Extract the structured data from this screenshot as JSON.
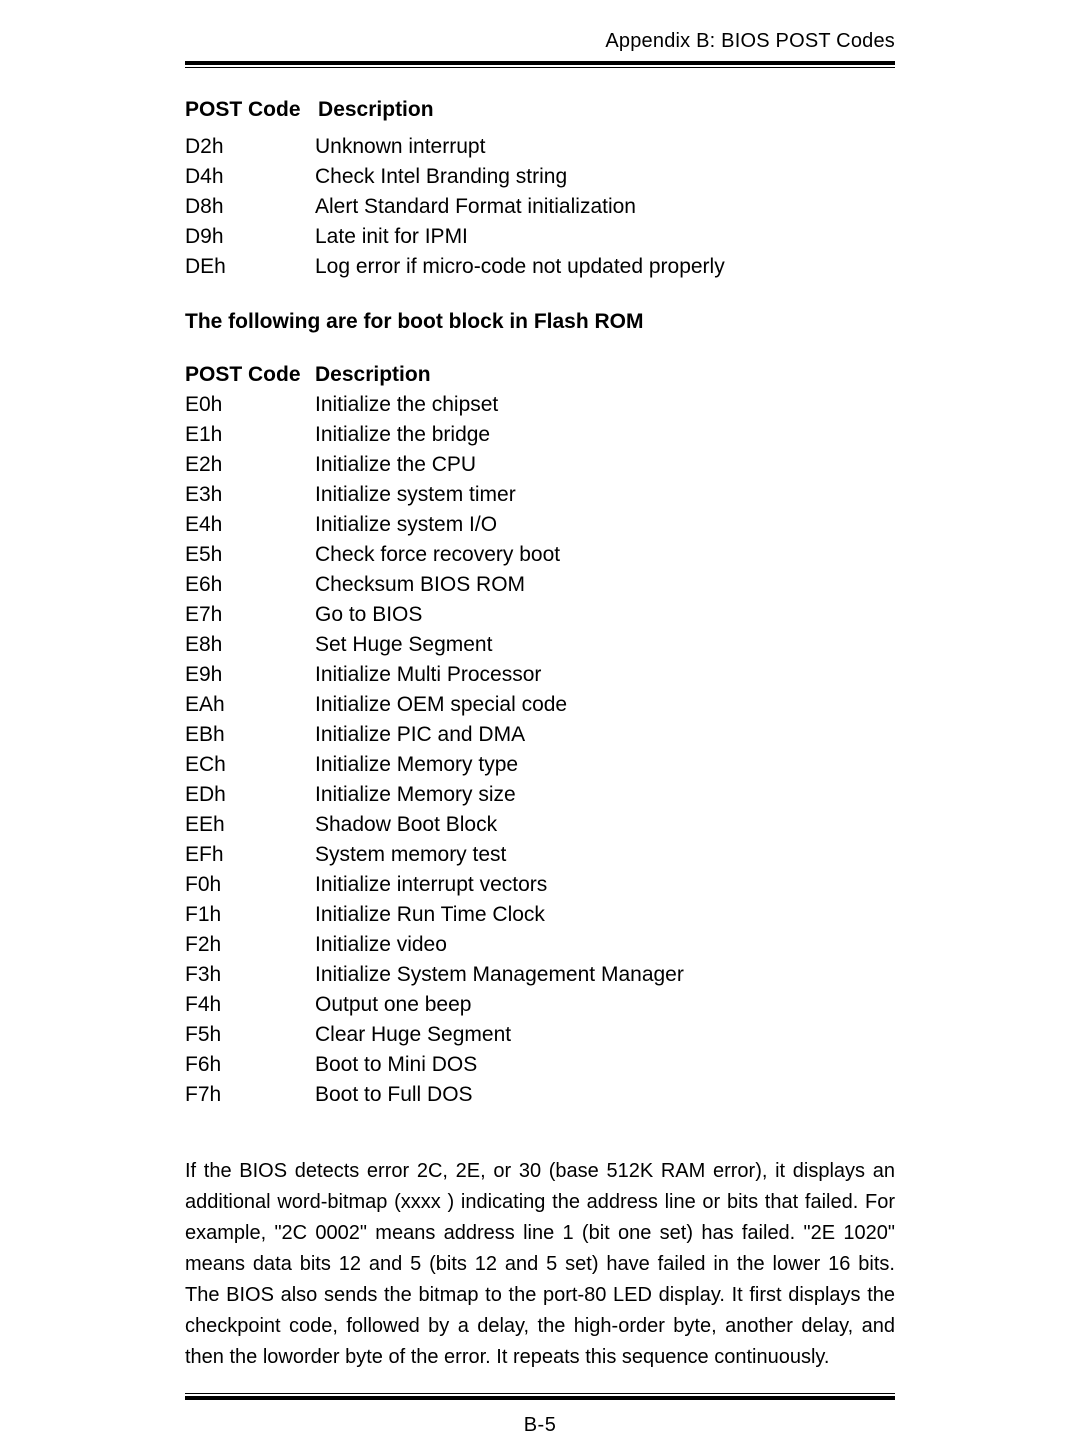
{
  "header": "Appendix B: BIOS POST Codes",
  "page_number": "B-5",
  "section1": {
    "head_code": "POST Code",
    "head_desc": "Description",
    "rows": [
      {
        "code": "D2h",
        "desc": "Unknown interrupt"
      },
      {
        "code": "D4h",
        "desc": "Check Intel Branding string"
      },
      {
        "code": "D8h",
        "desc": "Alert Standard Format  initialization"
      },
      {
        "code": "D9h",
        "desc": "Late init for IPMI"
      },
      {
        "code": "DEh",
        "desc": "Log error if micro-code not updated properly"
      }
    ]
  },
  "mid_heading": "The following are for boot block in Flash ROM",
  "section2": {
    "head_code": "POST Code",
    "head_desc": "Description",
    "rows": [
      {
        "code": "E0h",
        "desc": "Initialize the chipset"
      },
      {
        "code": "E1h",
        "desc": "Initialize the bridge"
      },
      {
        "code": "E2h",
        "desc": "Initialize the CPU"
      },
      {
        "code": "E3h",
        "desc": "Initialize system timer"
      },
      {
        "code": "E4h",
        "desc": "Initialize system I/O"
      },
      {
        "code": "E5h",
        "desc": "Check force recovery boot"
      },
      {
        "code": "E6h",
        "desc": "Checksum BIOS ROM"
      },
      {
        "code": "E7h",
        "desc": "Go to BIOS"
      },
      {
        "code": "E8h",
        "desc": "Set Huge Segment"
      },
      {
        "code": "E9h",
        "desc": "Initialize Multi Processor"
      },
      {
        "code": "EAh",
        "desc": "Initialize OEM special code"
      },
      {
        "code": "EBh",
        "desc": "Initialize PIC and DMA"
      },
      {
        "code": "ECh",
        "desc": "Initialize Memory type"
      },
      {
        "code": "EDh",
        "desc": "Initialize Memory size"
      },
      {
        "code": "EEh",
        "desc": "Shadow Boot Block"
      },
      {
        "code": "EFh",
        "desc": "System memory test"
      },
      {
        "code": "F0h",
        "desc": "Initialize interrupt vectors"
      },
      {
        "code": "F1h",
        "desc": "Initialize Run Time Clock"
      },
      {
        "code": "F2h",
        "desc": "Initialize video"
      },
      {
        "code": "F3h",
        "desc": "Initialize System Management Manager"
      },
      {
        "code": "F4h",
        "desc": "Output one beep"
      },
      {
        "code": "F5h",
        "desc": "Clear Huge Segment"
      },
      {
        "code": "F6h",
        "desc": "Boot to Mini DOS"
      },
      {
        "code": "F7h",
        "desc": "Boot to Full DOS"
      }
    ]
  },
  "paragraph": " If the BIOS detects error 2C, 2E, or 30 (base 512K RAM error), it displays an additional word-bitmap (xxxx ) indicating the address line or bits that failed.  For example, \"2C 0002\" means address line 1 (bit one set) has failed.  \"2E 1020\" means data bits 12 and 5 (bits 12 and 5 set) have failed in the lower 16 bits.  The BIOS also sends the bitmap to the port-80 LED display.  It first displays the checkpoint code, followed by a delay, the high-order byte, another delay, and then the loworder byte of the error.  It repeats this sequence continuously."
}
